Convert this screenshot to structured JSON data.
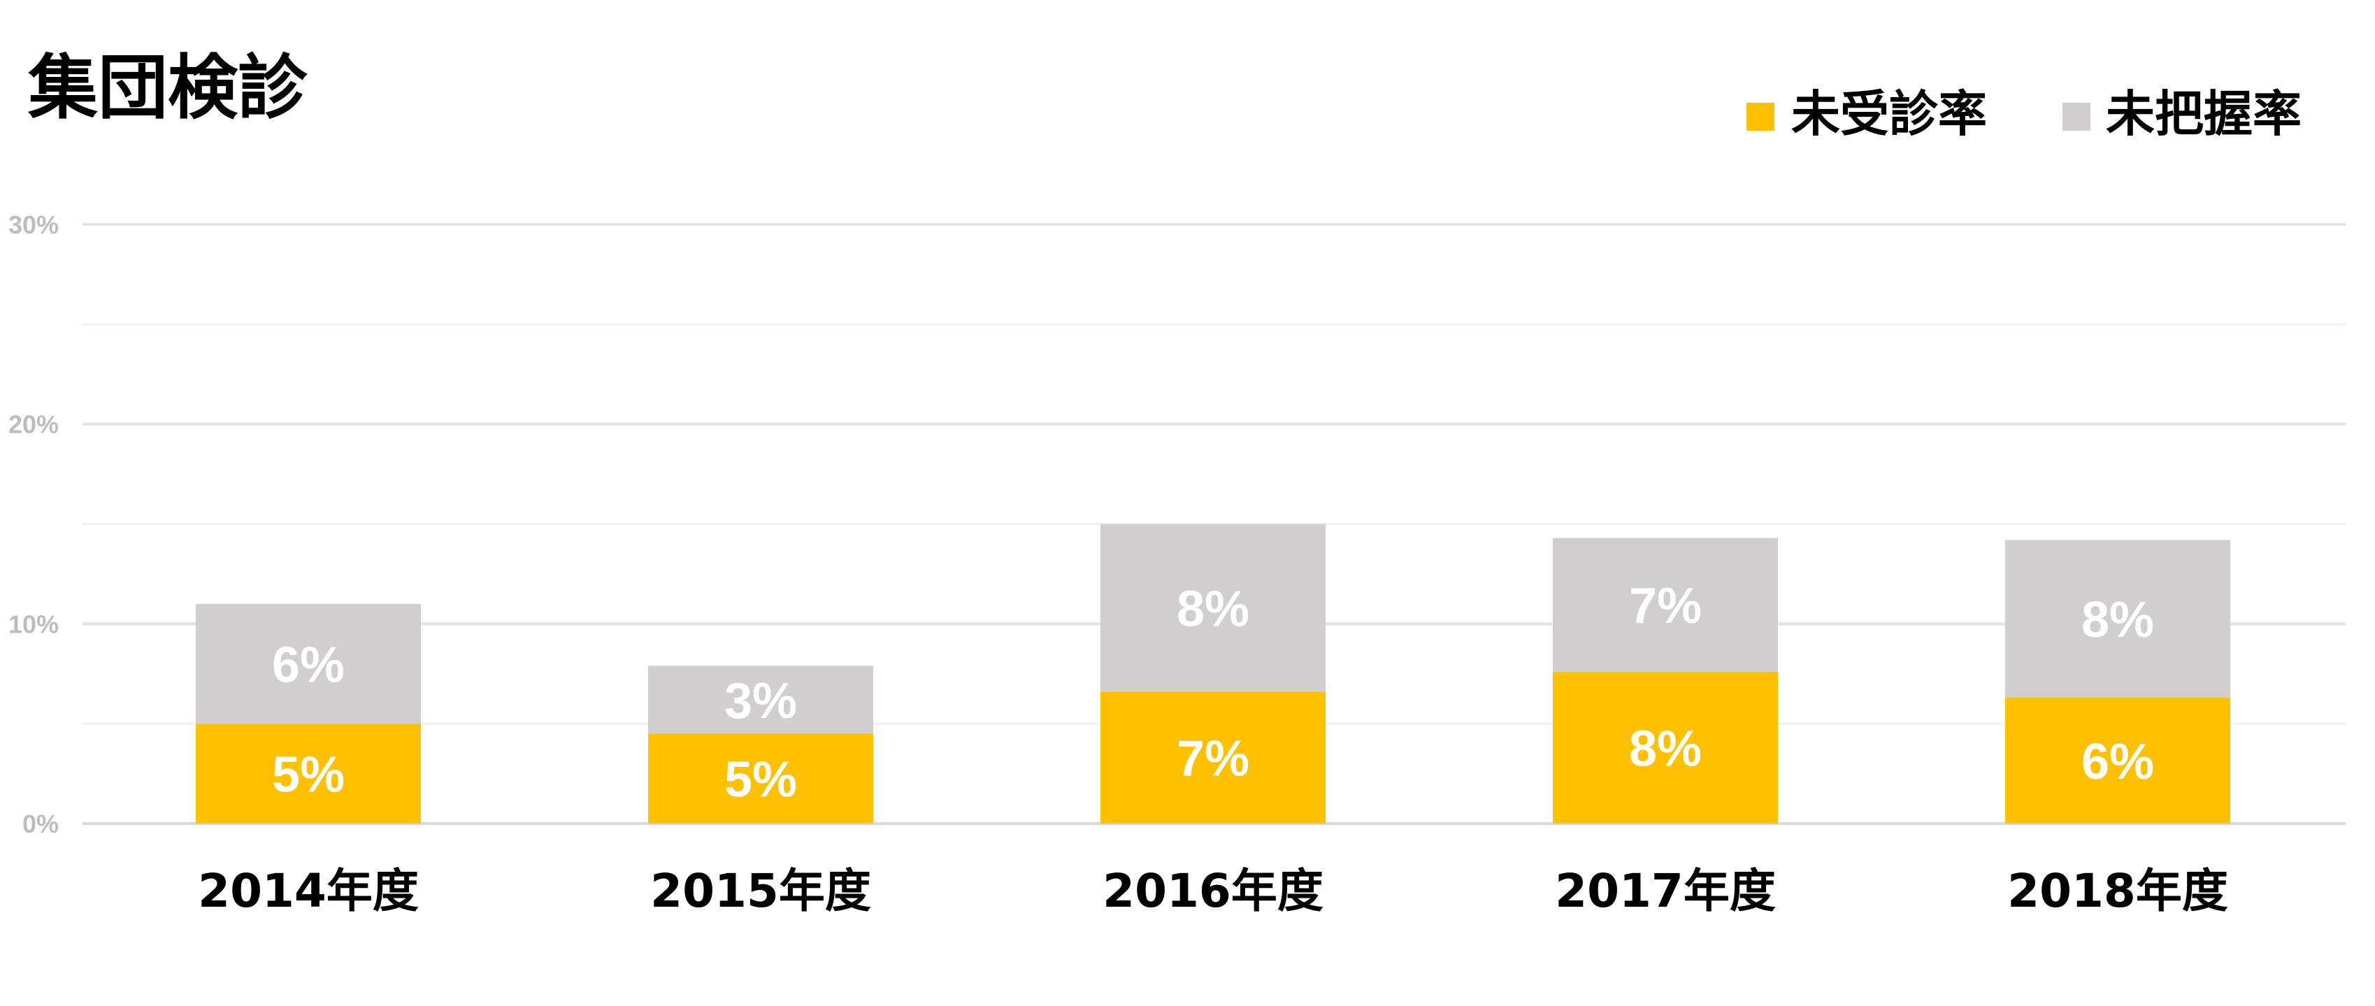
{
  "chart_data": {
    "type": "bar",
    "stacked": true,
    "title": "集団検診",
    "categories": [
      "2014年度",
      "2015年度",
      "2016年度",
      "2017年度",
      "2018年度"
    ],
    "series": [
      {
        "name": "未受診率",
        "color": "#FFC000",
        "values": [
          5.0,
          4.5,
          6.6,
          7.6,
          6.3
        ],
        "labels": [
          "5%",
          "5%",
          "7%",
          "8%",
          "6%"
        ]
      },
      {
        "name": "未把握率",
        "color": "#D0CECE",
        "values": [
          6.0,
          3.4,
          8.4,
          6.7,
          7.9
        ],
        "labels": [
          "6%",
          "3%",
          "8%",
          "7%",
          "8%"
        ]
      }
    ],
    "ylim": [
      0,
      30
    ],
    "yticks": [
      0,
      10,
      20,
      30
    ],
    "ytick_labels": [
      "0%",
      "10%",
      "20%",
      "30%"
    ],
    "xlabel": "",
    "ylabel": "",
    "grid": true,
    "legend_position": "top-right"
  }
}
